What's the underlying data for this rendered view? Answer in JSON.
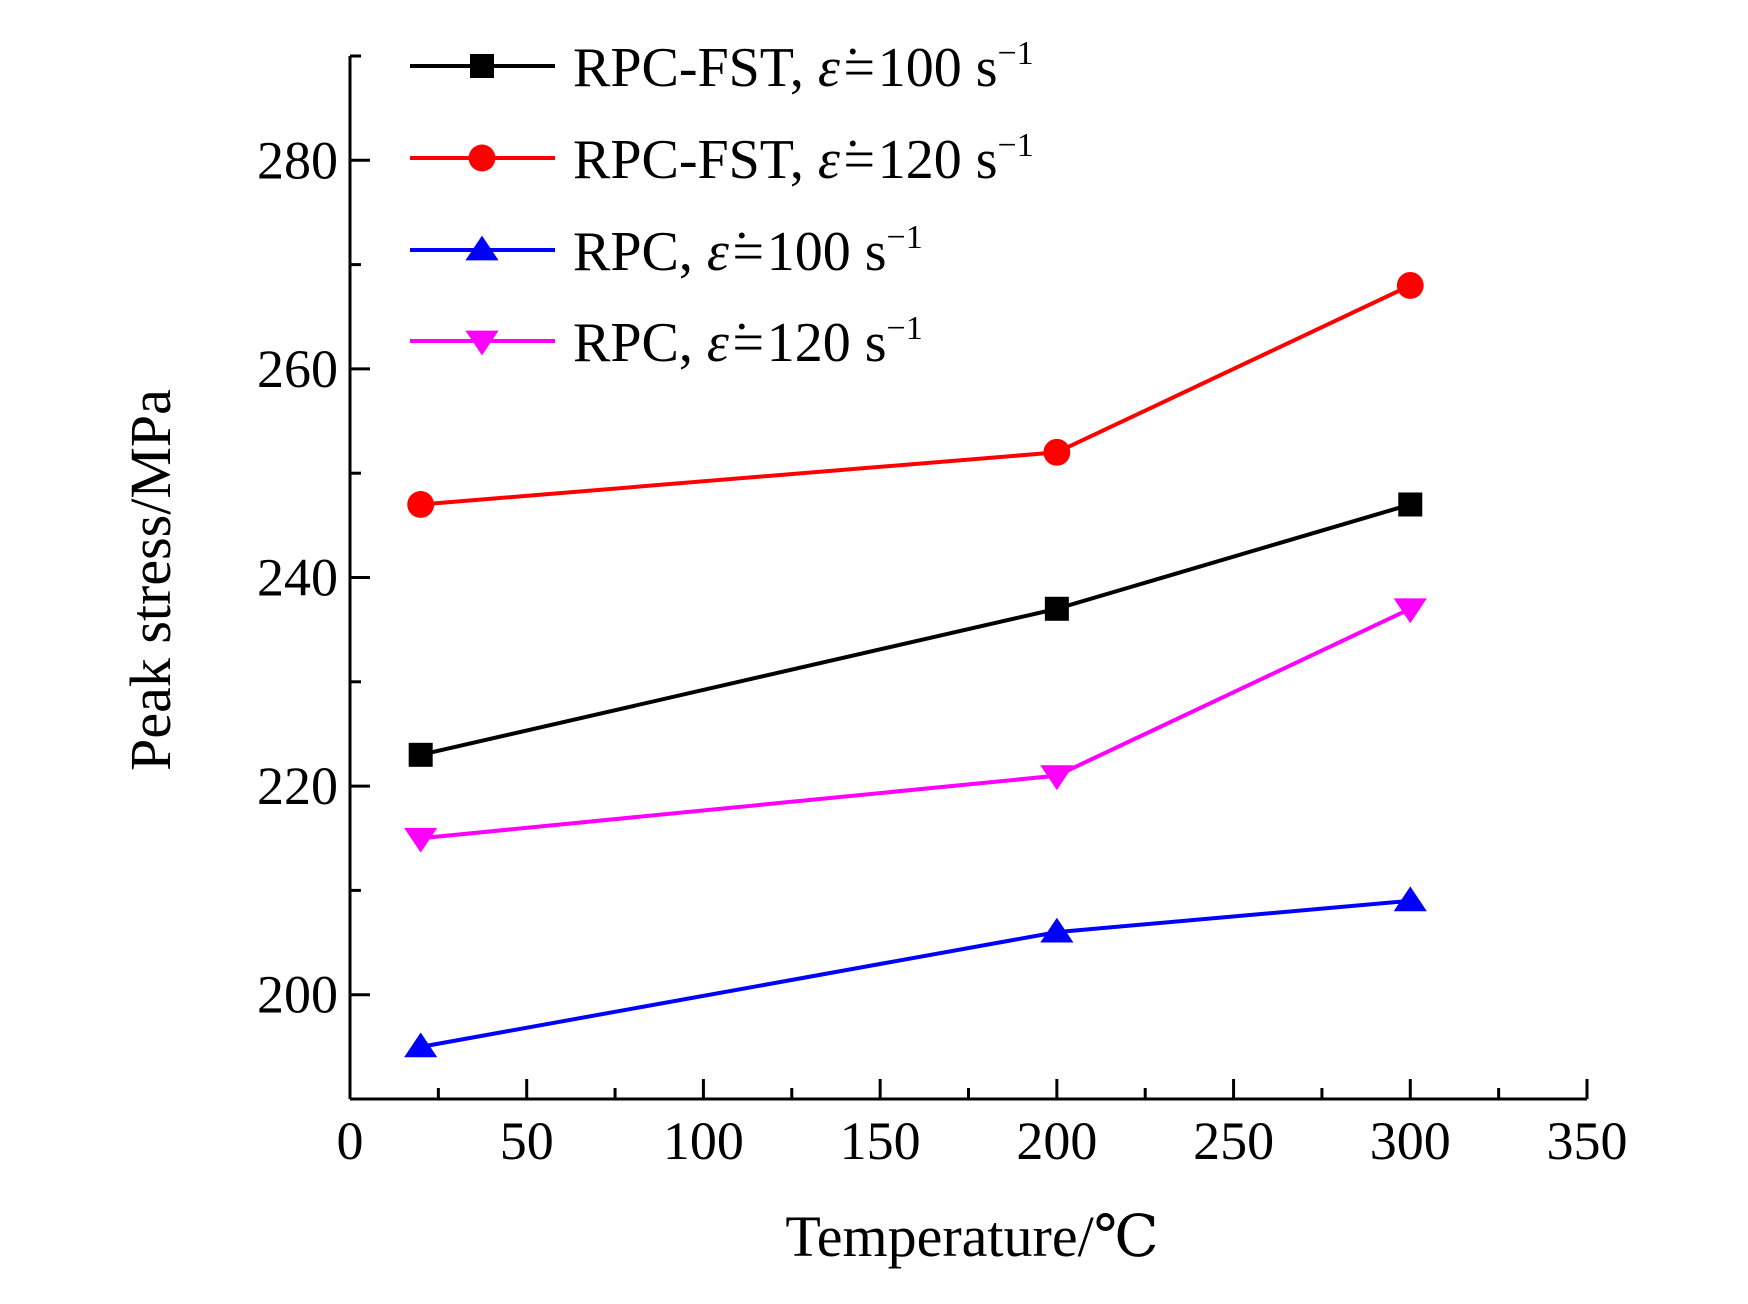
{
  "chart_data": {
    "type": "line",
    "title": "",
    "xlabel": "Temperature/℃",
    "ylabel": "Peak stress/MPa",
    "xlim": [
      0,
      350
    ],
    "ylim": [
      190,
      290
    ],
    "xticks": [
      0,
      50,
      100,
      150,
      200,
      250,
      300,
      350
    ],
    "yticks": [
      200,
      220,
      240,
      260,
      280
    ],
    "x_minor_step": 25,
    "y_minor_step": 10,
    "grid": false,
    "legend_position": "top-left",
    "series": [
      {
        "name_main": "RPC-FST",
        "rate": "100",
        "unit": "s",
        "exp": "−1",
        "color": "#000000",
        "marker": "square",
        "x": [
          20,
          200,
          300
        ],
        "values": [
          223,
          237,
          247
        ]
      },
      {
        "name_main": "RPC-FST",
        "rate": "120",
        "unit": "s",
        "exp": "−1",
        "color": "#ff0000",
        "marker": "circle",
        "x": [
          20,
          200,
          300
        ],
        "values": [
          247,
          252,
          268
        ]
      },
      {
        "name_main": "RPC",
        "rate": "100",
        "unit": "s",
        "exp": "−1",
        "color": "#0000ff",
        "marker": "triangle-up",
        "x": [
          20,
          200,
          300
        ],
        "values": [
          195,
          206,
          209
        ]
      },
      {
        "name_main": "RPC",
        "rate": "120",
        "unit": "s",
        "exp": "−1",
        "color": "#ff00ff",
        "marker": "triangle-down",
        "x": [
          20,
          200,
          300
        ],
        "values": [
          215,
          221,
          237
        ]
      }
    ],
    "legend_symbol": "ε̇="
  }
}
